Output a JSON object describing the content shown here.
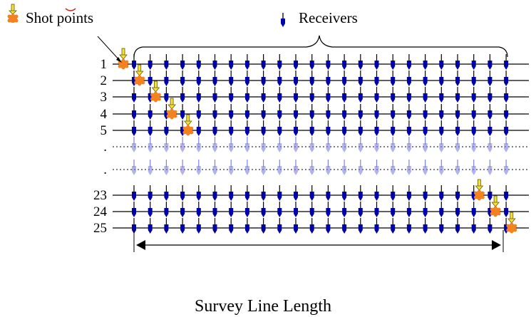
{
  "legend": {
    "shot_label": "Shot points",
    "receiver_label": "Receivers"
  },
  "rows": [
    {
      "label": "1",
      "type": "solid",
      "shot_at": 0
    },
    {
      "label": "2",
      "type": "solid",
      "shot_at": 1
    },
    {
      "label": "3",
      "type": "solid",
      "shot_at": 2
    },
    {
      "label": "4",
      "type": "solid",
      "shot_at": 3
    },
    {
      "label": "5",
      "type": "solid",
      "shot_at": 4
    },
    {
      "label": ".",
      "type": "dotted",
      "shot_at": null
    },
    {
      "label": ".",
      "type": "dotted",
      "shot_at": null
    },
    {
      "label": "23",
      "type": "solid",
      "shot_at": 22
    },
    {
      "label": "24",
      "type": "solid",
      "shot_at": 23
    },
    {
      "label": "25",
      "type": "solid",
      "shot_at": 24
    }
  ],
  "receivers_per_line": 24,
  "caption": "Survey Line Length",
  "colors": {
    "receiver": "#0000a8",
    "receiver_faded": "#8080e0",
    "shot_fill": "#f58220",
    "shot_arrow": "#f0e040",
    "line": "#000000"
  }
}
